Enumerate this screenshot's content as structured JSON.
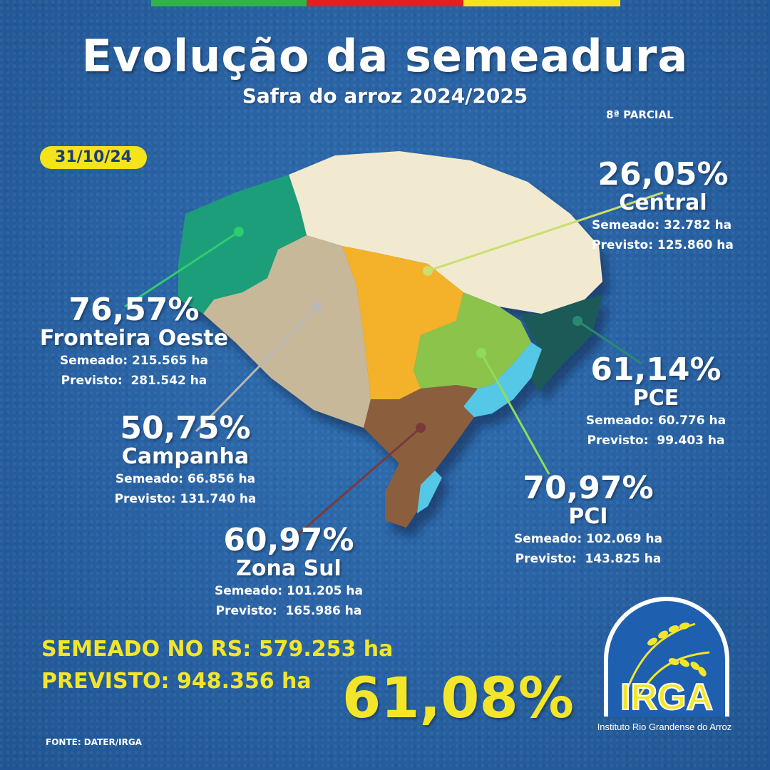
{
  "header": {
    "title": "Evolução da semeadura",
    "subtitle": "Safra do arroz 2024/2025",
    "parcial": "8ª PARCIAL",
    "date": "31/10/24"
  },
  "regions": {
    "central": {
      "pct": "26,05%",
      "name": "Central",
      "semeado": "Semeado: 32.782 ha",
      "previsto": "Previsto: 125.860 ha",
      "color": "#f3b22a"
    },
    "fronteira": {
      "pct": "76,57%",
      "name": "Fronteira Oeste",
      "semeado": "Semeado: 215.565 ha",
      "previsto": "Previsto:  281.542 ha",
      "color": "#1a9e7a"
    },
    "campanha": {
      "pct": "50,75%",
      "name": "Campanha",
      "semeado": "Semeado: 66.856 ha",
      "previsto": "Previsto: 131.740 ha",
      "color": "#c8b89a"
    },
    "pce": {
      "pct": "61,14%",
      "name": "PCE",
      "semeado": "Semeado: 60.776 ha",
      "previsto": "Previsto:  99.403 ha",
      "color": "#1d5a58"
    },
    "pci": {
      "pct": "70,97%",
      "name": "PCI",
      "semeado": "Semeado: 102.069 ha",
      "previsto": "Previsto:  143.825 ha",
      "color": "#8cc34b"
    },
    "zonasul": {
      "pct": "60,97%",
      "name": "Zona Sul",
      "semeado": "Semeado: 101.205 ha",
      "previsto": "Previsto:  165.986 ha",
      "color": "#8b5e3c"
    }
  },
  "totals": {
    "semeado": "SEMEADO NO RS: 579.253 ha",
    "previsto": "PREVISTO: 948.356 ha",
    "percent": "61,08%"
  },
  "footer": {
    "fonte": "FONTE: DATER/IRGA",
    "logo_text": "IRGA",
    "logo_tagline": "Instituto Rio Grandense do Arroz"
  },
  "colors": {
    "accent_yellow": "#f3e62a",
    "flag_green": "#2fb34a",
    "flag_red": "#e21f26",
    "flag_yellow": "#f5e31c"
  }
}
